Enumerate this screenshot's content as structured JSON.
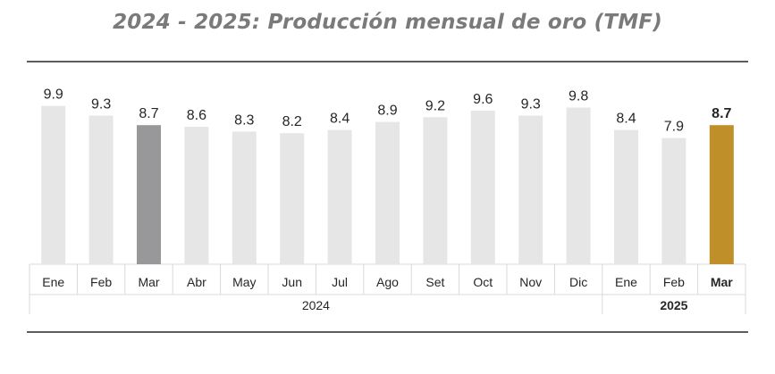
{
  "colors": {
    "default_bar": "#e6e6e6",
    "compare_bar": "#98989a",
    "current_bar": "#bf8f2a",
    "rule": "#262626",
    "grid": "#d9d9d9",
    "title": "#7a7a7a"
  },
  "chart_data": {
    "type": "bar",
    "title": "2024 - 2025: Producción mensual de oro  (TMF)",
    "xlabel": "",
    "ylabel": "",
    "ylim": [
      0,
      10.5
    ],
    "grid": false,
    "legend": "none",
    "categories": [
      "Ene",
      "Feb",
      "Mar",
      "Abr",
      "May",
      "Jun",
      "Jul",
      "Ago",
      "Set",
      "Oct",
      "Nov",
      "Dic",
      "Ene",
      "Feb",
      "Mar"
    ],
    "values": [
      9.9,
      9.3,
      8.7,
      8.6,
      8.3,
      8.2,
      8.4,
      8.9,
      9.2,
      9.6,
      9.3,
      9.8,
      8.4,
      7.9,
      8.7
    ],
    "value_labels": [
      "9.9",
      "9.3",
      "8.7",
      "8.6",
      "8.3",
      "8.2",
      "8.4",
      "8.9",
      "9.2",
      "9.6",
      "9.3",
      "9.8",
      "8.4",
      "7.9",
      "8.7"
    ],
    "bar_roles": [
      "default",
      "default",
      "compare",
      "default",
      "default",
      "default",
      "default",
      "default",
      "default",
      "default",
      "default",
      "default",
      "default",
      "default",
      "current"
    ],
    "year_groups": [
      {
        "label": "2024",
        "count": 12,
        "bold": false
      },
      {
        "label": "2025",
        "count": 3,
        "bold": true
      }
    ]
  }
}
